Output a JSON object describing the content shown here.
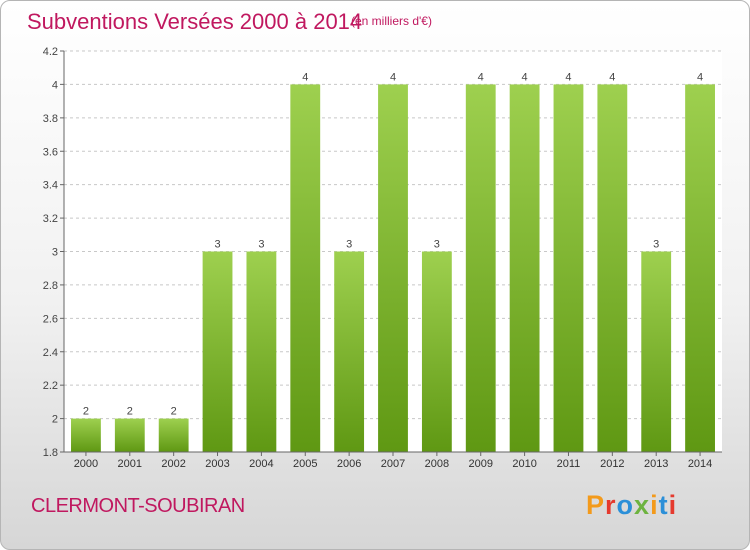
{
  "header": {
    "title": "Subventions Versées 2000 à 2014",
    "unit": "(en milliers d'€)"
  },
  "footer": {
    "commune": "CLERMONT-SOUBIRAN",
    "logo": "Proxiti"
  },
  "colors": {
    "title": "#c0185f",
    "bar_top": "#9ed04f",
    "bar_bottom": "#5f9813",
    "logo_letters": [
      "#f39a1b",
      "#e53a2e",
      "#2b8fd8",
      "#6db33f",
      "#f39a1b",
      "#2b8fd8",
      "#e53a2e"
    ]
  },
  "chart_data": {
    "type": "bar",
    "title": "Subventions Versées 2000 à 2014",
    "categories": [
      "2000",
      "2001",
      "2002",
      "2003",
      "2004",
      "2005",
      "2006",
      "2007",
      "2008",
      "2009",
      "2010",
      "2011",
      "2012",
      "2013",
      "2014"
    ],
    "values": [
      2,
      2,
      2,
      3,
      3,
      4,
      3,
      4,
      3,
      4,
      4,
      4,
      4,
      3,
      4
    ],
    "data_labels": [
      "2",
      "2",
      "2",
      "3",
      "3",
      "4",
      "3",
      "4",
      "3",
      "4",
      "4",
      "4",
      "4",
      "3",
      "4"
    ],
    "yticks": [
      1.8,
      2,
      2.2,
      2.4,
      2.6,
      2.8,
      3,
      3.2,
      3.4,
      3.6,
      3.8,
      4,
      4.2
    ],
    "ytick_labels": [
      "1.8",
      "2",
      "2.2",
      "2.4",
      "2.6",
      "2.8",
      "3",
      "3.2",
      "3.4",
      "3.6",
      "3.8",
      "4",
      "4.2"
    ],
    "ylim": [
      1.8,
      4.2
    ],
    "grid": true,
    "legend": "none"
  }
}
